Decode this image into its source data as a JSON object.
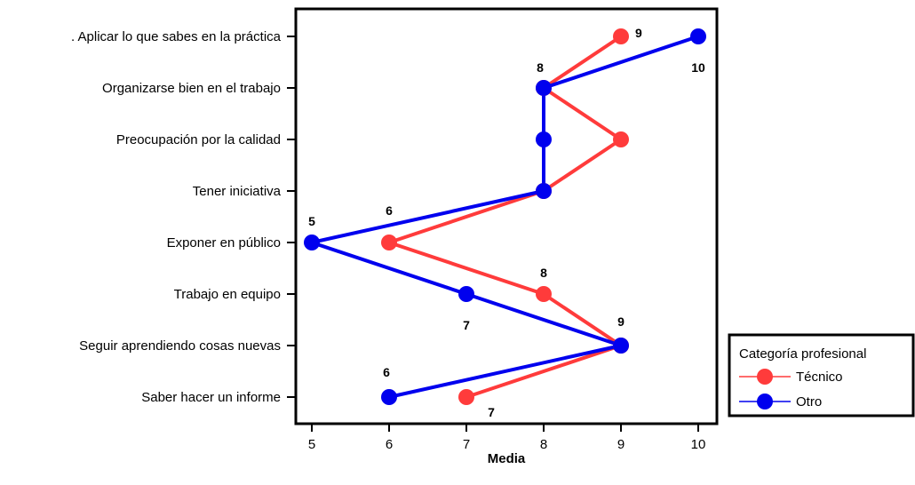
{
  "chart_data": {
    "type": "line",
    "orientation": "horizontal",
    "categories": [
      ". Aplicar lo que sabes en la práctica",
      "Organizarse bien en el trabajo",
      "Preocupación por la calidad",
      "Tener iniciativa",
      "Exponer en público",
      "Trabajo en equipo",
      "Seguir aprendiendo cosas nuevas",
      "Saber hacer un informe"
    ],
    "series": [
      {
        "name": "Técnico",
        "color": "#ff3b3b",
        "values": [
          9,
          8,
          9,
          8,
          6,
          8,
          9,
          7
        ],
        "data_labels": [
          "9",
          "",
          "",
          "",
          "6",
          "8",
          "",
          "7"
        ]
      },
      {
        "name": "Otro",
        "color": "#0000ee",
        "values": [
          10,
          8,
          8,
          8,
          5,
          7,
          9,
          6
        ],
        "data_labels": [
          "10",
          "8",
          "",
          "",
          "5",
          "7",
          "9",
          "6"
        ]
      }
    ],
    "xlabel": "Media",
    "xlim": [
      5,
      10
    ],
    "xticks": [
      "5",
      "6",
      "7",
      "8",
      "9",
      "10"
    ],
    "grid": false,
    "legend": {
      "title": "Categoría profesional",
      "position": "bottom-right"
    }
  }
}
